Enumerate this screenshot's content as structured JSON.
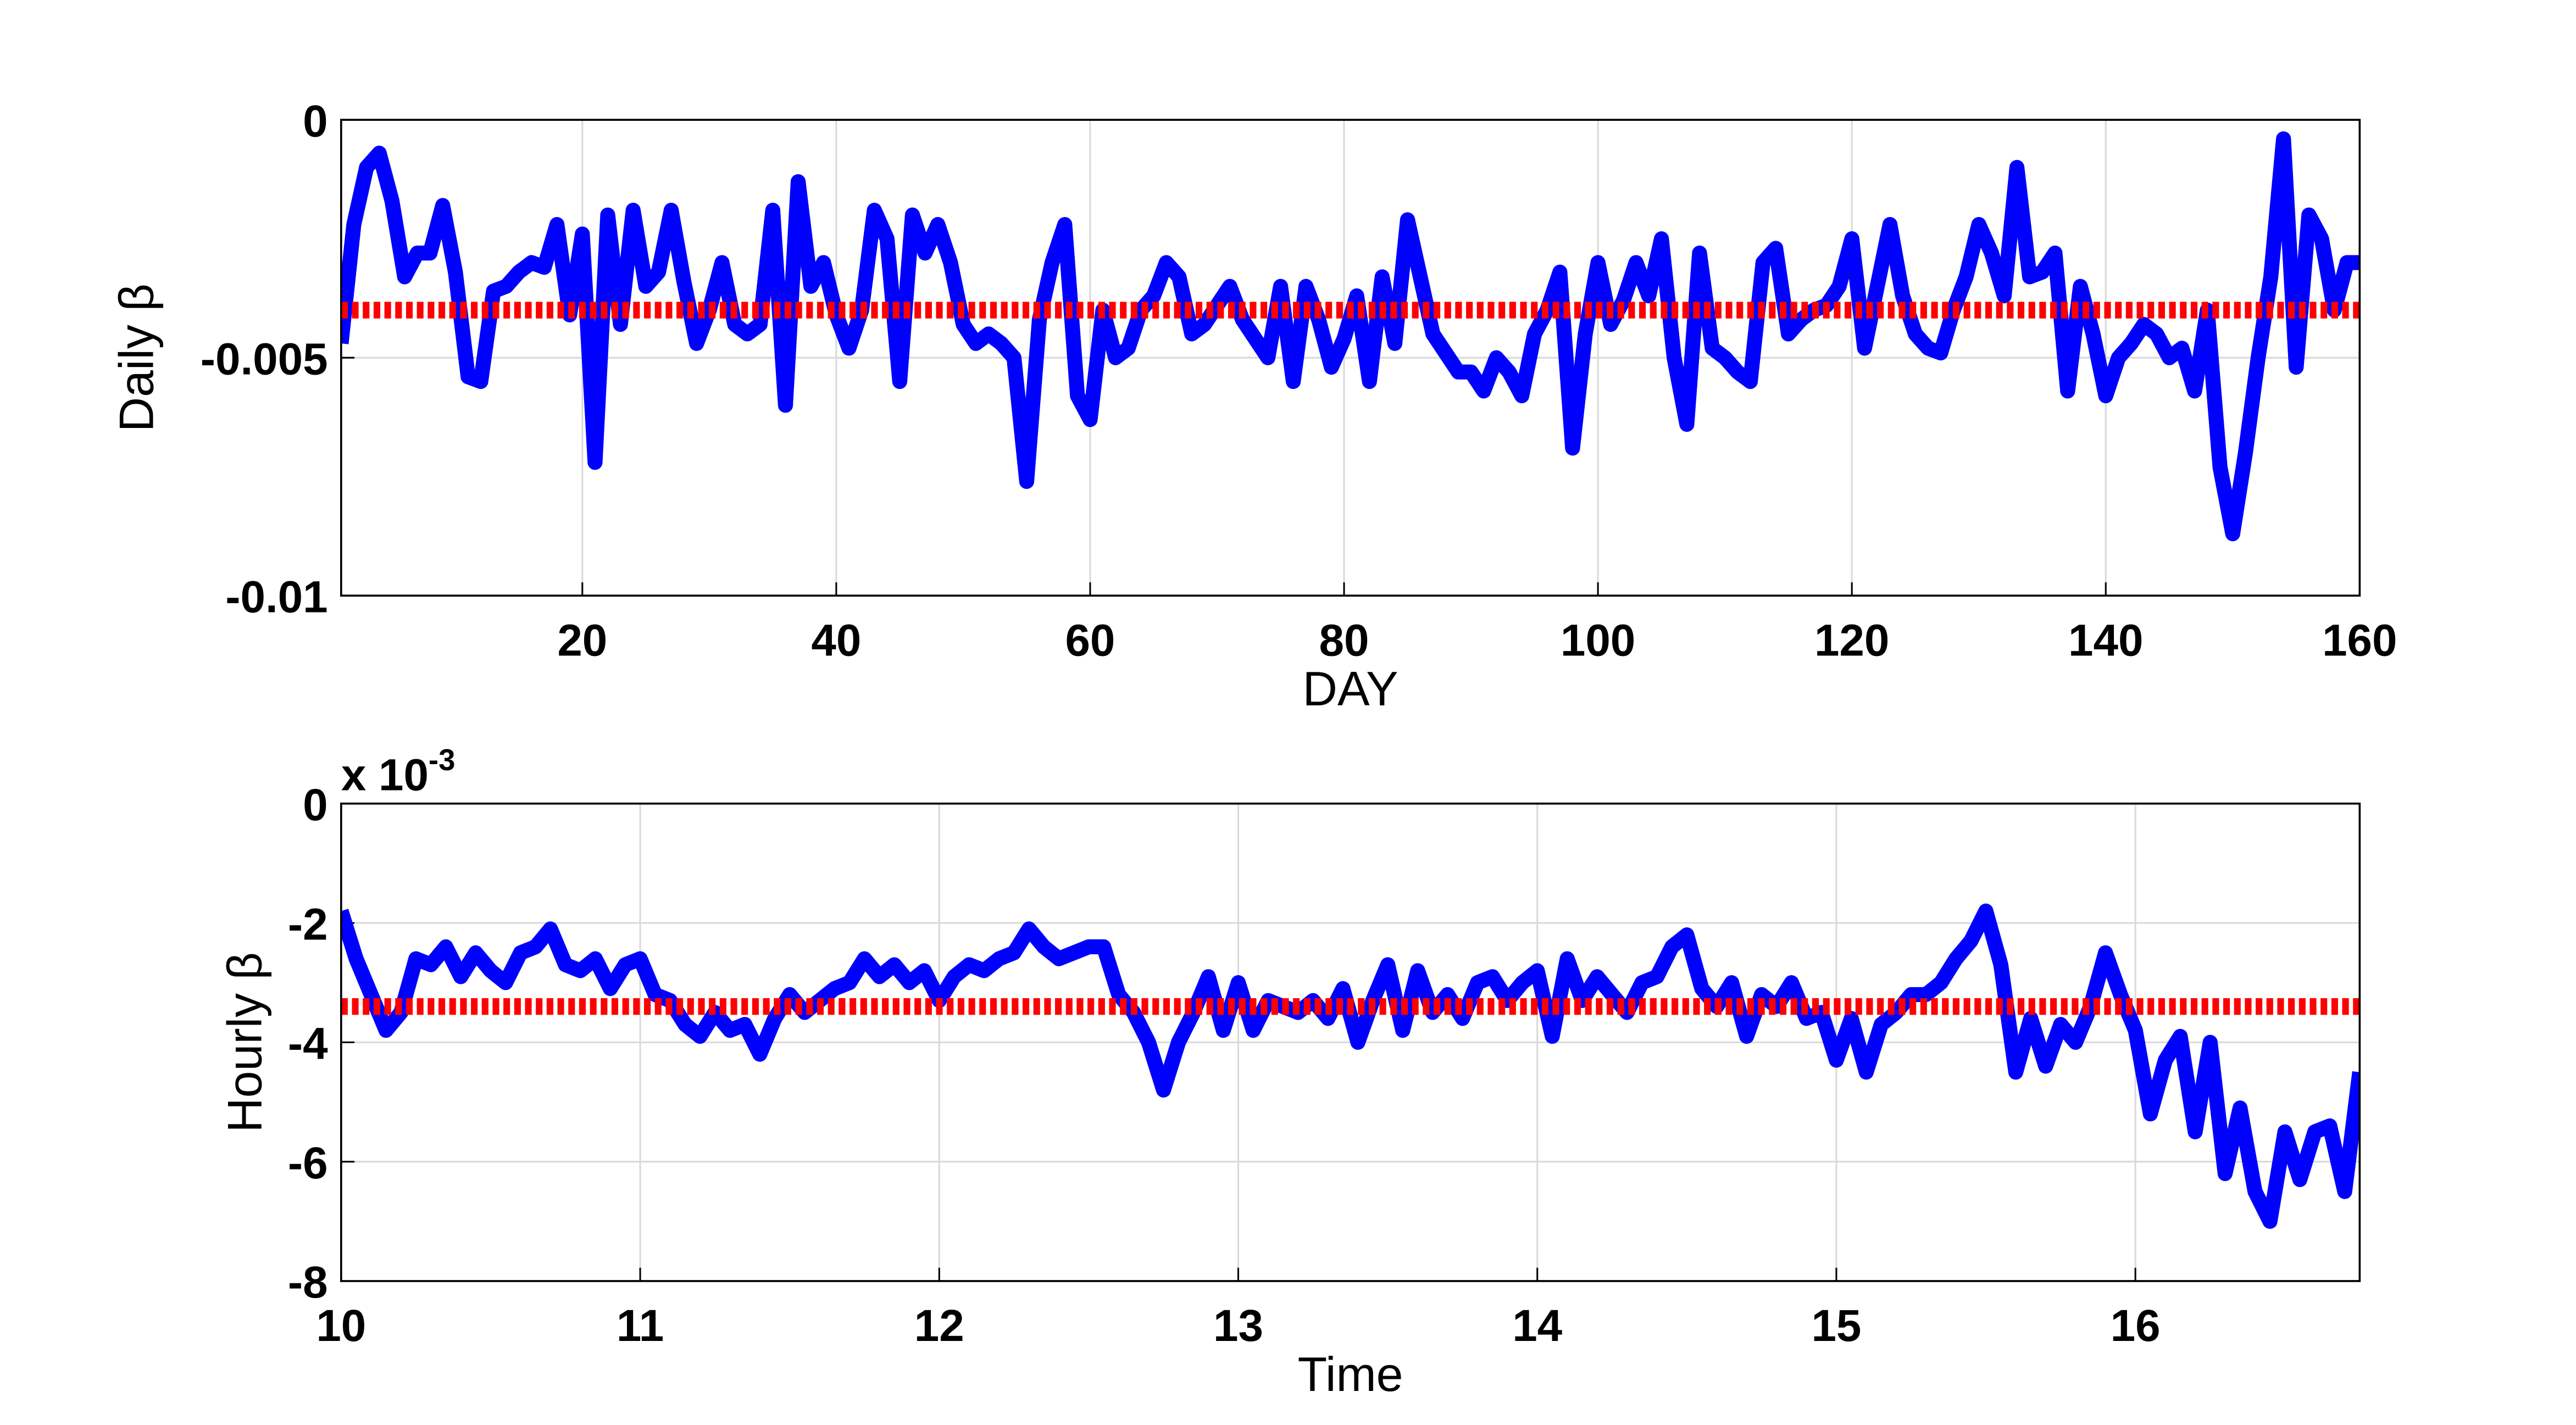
{
  "chart_data": [
    {
      "type": "line",
      "xlabel": "DAY",
      "ylabel": "Daily β",
      "xlim": [
        1,
        160
      ],
      "ylim": [
        -0.01,
        0
      ],
      "xticks": [
        20,
        40,
        60,
        80,
        100,
        120,
        140,
        160
      ],
      "yticks": [
        -0.01,
        -0.005,
        0
      ],
      "grid": true,
      "x": [
        1,
        2,
        3,
        4,
        5,
        6,
        7,
        8,
        9,
        10,
        11,
        12,
        13,
        14,
        15,
        16,
        17,
        18,
        19,
        20,
        21,
        22,
        23,
        24,
        25,
        26,
        27,
        28,
        29,
        30,
        31,
        32,
        33,
        34,
        35,
        36,
        37,
        38,
        39,
        40,
        41,
        42,
        43,
        44,
        45,
        46,
        47,
        48,
        49,
        50,
        51,
        52,
        53,
        54,
        55,
        56,
        57,
        58,
        59,
        60,
        61,
        62,
        63,
        64,
        65,
        66,
        67,
        68,
        69,
        70,
        71,
        72,
        73,
        74,
        75,
        76,
        77,
        78,
        79,
        80,
        81,
        82,
        83,
        84,
        85,
        86,
        87,
        88,
        89,
        90,
        91,
        92,
        93,
        94,
        95,
        96,
        97,
        98,
        99,
        100,
        101,
        102,
        103,
        104,
        105,
        106,
        107,
        108,
        109,
        110,
        111,
        112,
        113,
        114,
        115,
        116,
        117,
        118,
        119,
        120,
        121,
        122,
        123,
        124,
        125,
        126,
        127,
        128,
        129,
        130,
        131,
        132,
        133,
        134,
        135,
        136,
        137,
        138,
        139,
        140,
        141,
        142,
        143,
        144,
        145,
        146,
        147,
        148,
        149,
        150,
        151,
        152,
        153,
        154,
        155,
        156,
        157,
        158,
        159,
        160
      ],
      "series": [
        {
          "color": "#0000ff",
          "values": [
            -0.0047,
            -0.0022,
            -0.001,
            -0.0007,
            -0.0017,
            -0.0033,
            -0.0028,
            -0.0028,
            -0.0018,
            -0.0032,
            -0.0054,
            -0.0055,
            -0.0036,
            -0.0035,
            -0.0032,
            -0.003,
            -0.0031,
            -0.0022,
            -0.0041,
            -0.0024,
            -0.0072,
            -0.002,
            -0.0043,
            -0.0019,
            -0.0035,
            -0.0032,
            -0.0019,
            -0.0034,
            -0.0047,
            -0.004,
            -0.003,
            -0.0043,
            -0.0045,
            -0.0043,
            -0.0019,
            -0.006,
            -0.0013,
            -0.0035,
            -0.003,
            -0.0041,
            -0.0048,
            -0.004,
            -0.0019,
            -0.0025,
            -0.0055,
            -0.002,
            -0.0028,
            -0.0022,
            -0.003,
            -0.0043,
            -0.0047,
            -0.0045,
            -0.0047,
            -0.005,
            -0.0076,
            -0.0042,
            -0.003,
            -0.0022,
            -0.0058,
            -0.0063,
            -0.004,
            -0.005,
            -0.0048,
            -0.004,
            -0.0037,
            -0.003,
            -0.0033,
            -0.0045,
            -0.0043,
            -0.0039,
            -0.0035,
            -0.0042,
            -0.0046,
            -0.005,
            -0.0035,
            -0.0055,
            -0.0035,
            -0.0042,
            -0.0052,
            -0.0046,
            -0.0037,
            -0.0055,
            -0.0033,
            -0.0047,
            -0.0021,
            -0.0033,
            -0.0045,
            -0.0049,
            -0.0053,
            -0.0053,
            -0.0057,
            -0.005,
            -0.0053,
            -0.0058,
            -0.0045,
            -0.004,
            -0.0032,
            -0.0069,
            -0.0045,
            -0.003,
            -0.0043,
            -0.0038,
            -0.003,
            -0.0037,
            -0.0025,
            -0.005,
            -0.0064,
            -0.0028,
            -0.0048,
            -0.005,
            -0.0053,
            -0.0055,
            -0.003,
            -0.0027,
            -0.0045,
            -0.0042,
            -0.004,
            -0.0039,
            -0.0035,
            -0.0025,
            -0.0048,
            -0.0035,
            -0.0022,
            -0.0037,
            -0.0045,
            -0.0048,
            -0.0049,
            -0.004,
            -0.0033,
            -0.0022,
            -0.0028,
            -0.0037,
            -0.001,
            -0.0033,
            -0.0032,
            -0.0028,
            -0.0057,
            -0.0035,
            -0.0045,
            -0.0058,
            -0.005,
            -0.0047,
            -0.0043,
            -0.0045,
            -0.005,
            -0.0048,
            -0.0057,
            -0.004,
            -0.0073,
            -0.0087,
            -0.007,
            -0.005,
            -0.0033,
            -0.0004,
            -0.0052,
            -0.002,
            -0.0025,
            -0.004,
            -0.003,
            -0.003
          ]
        }
      ],
      "reference_line": {
        "value": -0.004,
        "color": "#ff0000"
      }
    },
    {
      "type": "line",
      "xlabel": "Time",
      "ylabel": "Hourly β",
      "y_multiplier": "x 10",
      "y_exponent": "-3",
      "xlim": [
        10,
        16.75
      ],
      "ylim": [
        -8,
        0
      ],
      "xticks": [
        10,
        11,
        12,
        13,
        14,
        15,
        16
      ],
      "yticks": [
        -8,
        -6,
        -4,
        -2,
        0
      ],
      "grid": true,
      "x": [
        10,
        10.05,
        10.1,
        10.15,
        10.2,
        10.25,
        10.3,
        10.35,
        10.4,
        10.45,
        10.5,
        10.55,
        10.6,
        10.65,
        10.7,
        10.75,
        10.8,
        10.85,
        10.9,
        10.95,
        11,
        11.05,
        11.1,
        11.15,
        11.2,
        11.25,
        11.3,
        11.35,
        11.4,
        11.45,
        11.5,
        11.55,
        11.6,
        11.65,
        11.7,
        11.75,
        11.8,
        11.85,
        11.9,
        11.95,
        12,
        12.05,
        12.1,
        12.15,
        12.2,
        12.25,
        12.3,
        12.35,
        12.4,
        12.45,
        12.5,
        12.55,
        12.6,
        12.65,
        12.7,
        12.75,
        12.8,
        12.85,
        12.9,
        12.95,
        13,
        13.05,
        13.1,
        13.15,
        13.2,
        13.25,
        13.3,
        13.35,
        13.4,
        13.45,
        13.5,
        13.55,
        13.6,
        13.65,
        13.7,
        13.75,
        13.8,
        13.85,
        13.9,
        13.95,
        14,
        14.05,
        14.1,
        14.15,
        14.2,
        14.25,
        14.3,
        14.35,
        14.4,
        14.45,
        14.5,
        14.55,
        14.6,
        14.65,
        14.7,
        14.75,
        14.8,
        14.85,
        14.9,
        14.95,
        15,
        15.05,
        15.1,
        15.15,
        15.2,
        15.25,
        15.3,
        15.35,
        15.4,
        15.45,
        15.5,
        15.55,
        15.6,
        15.65,
        15.7,
        15.75,
        15.8,
        15.85,
        15.9,
        15.95,
        16,
        16.05,
        16.1,
        16.15,
        16.2,
        16.25,
        16.3,
        16.35,
        16.4,
        16.45,
        16.5,
        16.55,
        16.6,
        16.65,
        16.7,
        16.75
      ],
      "series": [
        {
          "color": "#0000ff",
          "values": [
            -1.8,
            -2.6,
            -3.2,
            -3.8,
            -3.5,
            -2.6,
            -2.7,
            -2.4,
            -2.9,
            -2.5,
            -2.8,
            -3.0,
            -2.5,
            -2.4,
            -2.1,
            -2.7,
            -2.8,
            -2.6,
            -3.1,
            -2.7,
            -2.6,
            -3.2,
            -3.3,
            -3.7,
            -3.9,
            -3.5,
            -3.8,
            -3.7,
            -4.2,
            -3.6,
            -3.2,
            -3.5,
            -3.3,
            -3.1,
            -3.0,
            -2.6,
            -2.9,
            -2.7,
            -3.0,
            -2.8,
            -3.3,
            -2.9,
            -2.7,
            -2.8,
            -2.6,
            -2.5,
            -2.1,
            -2.4,
            -2.6,
            -2.5,
            -2.4,
            -2.4,
            -3.2,
            -3.5,
            -4.0,
            -4.8,
            -4.0,
            -3.5,
            -2.9,
            -3.8,
            -3.0,
            -3.8,
            -3.3,
            -3.4,
            -3.5,
            -3.3,
            -3.6,
            -3.1,
            -4.0,
            -3.3,
            -2.7,
            -3.8,
            -2.8,
            -3.5,
            -3.2,
            -3.6,
            -3.0,
            -2.9,
            -3.3,
            -3.0,
            -2.8,
            -3.9,
            -2.6,
            -3.3,
            -2.9,
            -3.2,
            -3.5,
            -3.0,
            -2.9,
            -2.4,
            -2.2,
            -3.1,
            -3.4,
            -3.0,
            -3.9,
            -3.2,
            -3.4,
            -3.0,
            -3.6,
            -3.5,
            -4.3,
            -3.6,
            -4.5,
            -3.7,
            -3.5,
            -3.2,
            -3.2,
            -3.0,
            -2.6,
            -2.3,
            -1.8,
            -2.7,
            -4.5,
            -3.6,
            -4.4,
            -3.7,
            -4.0,
            -3.4,
            -2.5,
            -3.2,
            -3.8,
            -5.2,
            -4.3,
            -3.9,
            -5.5,
            -4.0,
            -6.2,
            -5.1,
            -6.5,
            -7.0,
            -5.5,
            -6.3,
            -5.5,
            -5.4,
            -6.5,
            -4.5
          ]
        }
      ],
      "reference_line": {
        "value": -3.4,
        "color": "#ff0000"
      }
    }
  ]
}
